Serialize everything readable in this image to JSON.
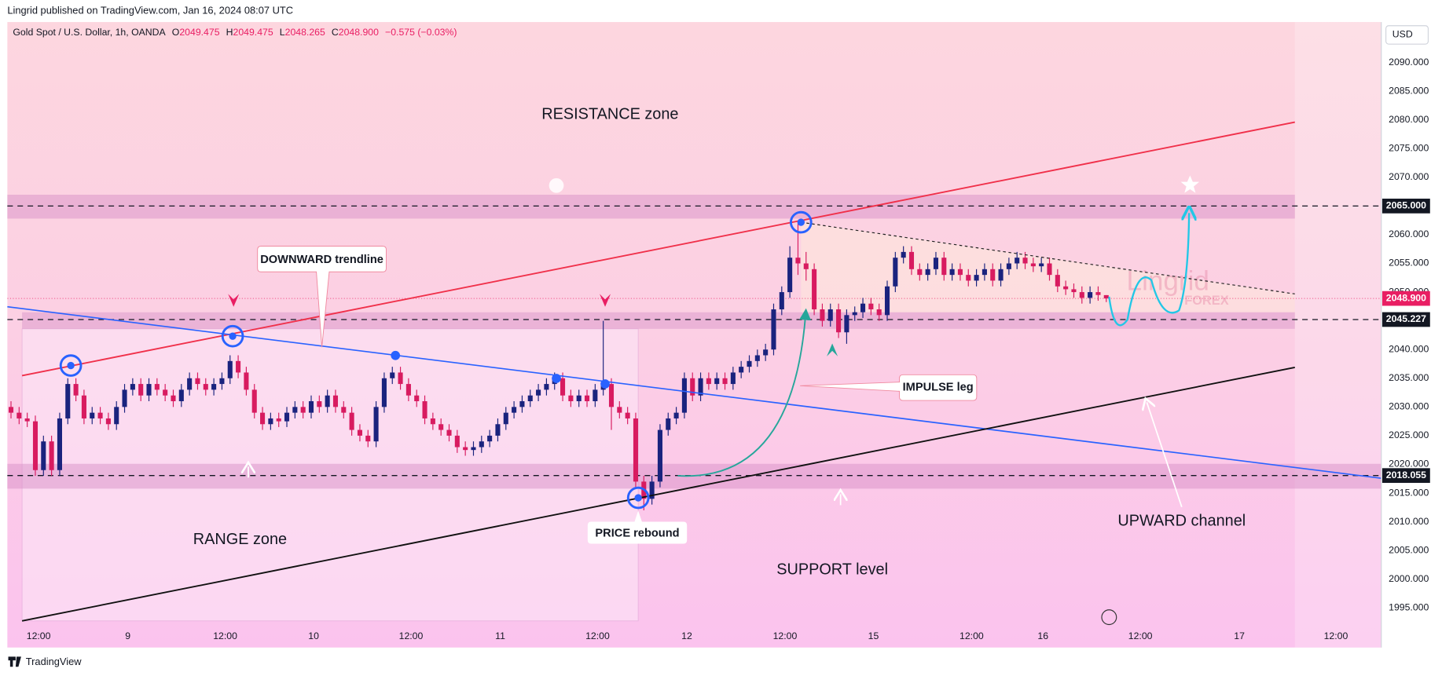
{
  "published": "Lingrid published on TradingView.com, Jan 16, 2024 08:07 UTC",
  "brand": "TradingView",
  "currency": "USD",
  "watermark": [
    "Lingrid",
    "FOREX"
  ],
  "chart_data": {
    "type": "candlestick",
    "title": "Gold Spot / U.S. Dollar, 1h, OANDA",
    "ohlc": [
      {
        "label": "O",
        "value": "2049.475"
      },
      {
        "label": "H",
        "value": "2049.475"
      },
      {
        "label": "L",
        "value": "2048.265"
      },
      {
        "label": "C",
        "value": "2048.900"
      }
    ],
    "change": "−0.575 (−0.03%)",
    "annotations": [
      "RESISTANCE zone",
      "DOWNWARD trendline",
      "IMPULSE leg",
      "PRICE rebound",
      "RANGE zone",
      "SUPPORT level",
      "UPWARD channel"
    ],
    "up_color": "#1a237e",
    "down_color": "#d81b60",
    "open": [
      2030,
      2029,
      2028,
      2027.5,
      2019,
      2024,
      2019,
      2028,
      2034,
      2032,
      2028,
      2029,
      2028,
      2027,
      2030,
      2033,
      2034,
      2032,
      2034,
      2033,
      2032,
      2031,
      2033,
      2035,
      2034,
      2033,
      2034,
      2035,
      2038,
      2036,
      2033,
      2029,
      2027,
      2028,
      2027.5,
      2029,
      2030,
      2029,
      2031,
      2030,
      2032,
      2030,
      2029,
      2026,
      2025,
      2024,
      2030,
      2035,
      2036,
      2034,
      2032,
      2031,
      2028,
      2027,
      2026,
      2025,
      2023,
      2022.5,
      2023,
      2024,
      2025,
      2027,
      2029,
      2030,
      2031,
      2032,
      2033,
      2034,
      2035,
      2032,
      2031,
      2032,
      2031,
      2033,
      2034,
      2030,
      2029,
      2028,
      2017,
      2014,
      2017,
      2026,
      2028,
      2029,
      2035,
      2032,
      2035,
      2034,
      2035,
      2034,
      2036,
      2037,
      2038,
      2039,
      2040,
      2047,
      2050,
      2056,
      2055,
      2054,
      2047,
      2045,
      2047,
      2043,
      2046,
      2046.5,
      2048,
      2047,
      2046,
      2051,
      2056,
      2057,
      2054,
      2053,
      2054,
      2056,
      2053,
      2054,
      2053,
      2052,
      2053,
      2054,
      2052,
      2054,
      2055,
      2056,
      2055,
      2054.5,
      2055,
      2053,
      2051,
      2050.5,
      2050,
      2049,
      2050,
      2049.475
    ],
    "high": [
      2031,
      2030,
      2029,
      2028.5,
      2025,
      2025,
      2029,
      2035,
      2035,
      2033,
      2030,
      2030,
      2029,
      2031,
      2034,
      2035,
      2035,
      2035,
      2035,
      2034,
      2033,
      2034,
      2036,
      2036,
      2035,
      2035,
      2036,
      2039,
      2039,
      2037,
      2034,
      2030,
      2029,
      2029,
      2030,
      2031,
      2031,
      2032,
      2032,
      2033,
      2033,
      2031,
      2030,
      2027,
      2026,
      2031,
      2036,
      2037,
      2037,
      2035,
      2033,
      2032,
      2029,
      2028,
      2027,
      2026,
      2024,
      2024,
      2025,
      2026,
      2028,
      2030,
      2031,
      2032,
      2033,
      2034,
      2035,
      2036,
      2036,
      2033,
      2033,
      2033,
      2034,
      2045,
      2035,
      2031,
      2030,
      2029,
      2018,
      2018,
      2027,
      2029,
      2030,
      2036,
      2036,
      2036,
      2036,
      2036,
      2036,
      2037,
      2038,
      2039,
      2040,
      2041,
      2048,
      2051,
      2058,
      2062,
      2057,
      2055,
      2048,
      2048,
      2048,
      2047,
      2047.5,
      2049,
      2049,
      2048,
      2052,
      2057,
      2058,
      2058,
      2055,
      2055,
      2057,
      2057,
      2055,
      2055,
      2054,
      2054,
      2055,
      2055,
      2055,
      2056,
      2057,
      2057,
      2056,
      2056,
      2056,
      2054,
      2052,
      2051.5,
      2051,
      2051,
      2051,
      2049.475
    ],
    "low": [
      2028,
      2027,
      2026.5,
      2018,
      2018,
      2018,
      2018,
      2027,
      2031,
      2027,
      2027,
      2027,
      2026,
      2026,
      2029,
      2032,
      2031,
      2031,
      2032,
      2031,
      2030,
      2030,
      2032,
      2033,
      2032,
      2032,
      2033,
      2034,
      2035,
      2032,
      2028,
      2026,
      2026,
      2026.5,
      2026.5,
      2028,
      2028,
      2028,
      2029,
      2029,
      2029,
      2028,
      2025,
      2024,
      2023,
      2023,
      2029,
      2034,
      2033,
      2031,
      2030,
      2027,
      2026,
      2025,
      2024,
      2022,
      2021.5,
      2021.5,
      2022,
      2023,
      2024,
      2026,
      2028,
      2029,
      2030,
      2031,
      2032,
      2033,
      2031,
      2030,
      2030,
      2030,
      2030,
      2032,
      2026,
      2028,
      2027,
      2016,
      2012,
      2013,
      2016,
      2025,
      2027,
      2028,
      2031,
      2031,
      2033,
      2033,
      2033,
      2033,
      2035,
      2036,
      2037,
      2038,
      2039,
      2046,
      2049,
      2053,
      2052,
      2046,
      2044,
      2044,
      2042,
      2041,
      2045,
      2045.5,
      2046,
      2045,
      2045,
      2050,
      2055,
      2053,
      2052,
      2052,
      2053,
      2052,
      2052,
      2052,
      2051,
      2051,
      2052,
      2051,
      2051,
      2053,
      2054,
      2054,
      2053.5,
      2053.5,
      2052,
      2050,
      2049.5,
      2049,
      2048,
      2048,
      2048.5,
      2048.265
    ],
    "close": [
      2029,
      2028,
      2027.5,
      2019,
      2024,
      2019,
      2028,
      2034,
      2032,
      2028,
      2029,
      2028,
      2027,
      2030,
      2033,
      2034,
      2032,
      2034,
      2033,
      2032,
      2031,
      2033,
      2035,
      2034,
      2033,
      2034,
      2035,
      2038,
      2036,
      2033,
      2029,
      2027,
      2028,
      2027.5,
      2029,
      2030,
      2029,
      2031,
      2030,
      2032,
      2030,
      2029,
      2026,
      2025,
      2024,
      2030,
      2035,
      2036,
      2034,
      2032,
      2031,
      2028,
      2027,
      2026,
      2025,
      2023,
      2022.5,
      2023,
      2024,
      2025,
      2027,
      2029,
      2030,
      2031,
      2032,
      2033,
      2034,
      2035,
      2032,
      2031,
      2032,
      2031,
      2033,
      2034,
      2030,
      2029,
      2028,
      2017,
      2014,
      2017,
      2026,
      2028,
      2029,
      2035,
      2032,
      2035,
      2034,
      2035,
      2034,
      2036,
      2037,
      2038,
      2039,
      2040,
      2047,
      2050,
      2056,
      2055,
      2054,
      2047,
      2045,
      2047,
      2043,
      2046,
      2046.5,
      2048,
      2047,
      2046,
      2051,
      2056,
      2057,
      2054,
      2053,
      2054,
      2056,
      2053,
      2054,
      2053,
      2052,
      2053,
      2054,
      2052,
      2054,
      2055,
      2056,
      2055,
      2054.5,
      2055,
      2053,
      2051,
      2050.5,
      2050,
      2049,
      2050,
      2049.5,
      2048.9
    ],
    "xlim": [
      -0.45,
      168.9
    ],
    "xticks": [
      {
        "value": 3.4,
        "label": "12:00"
      },
      {
        "value": 14.4,
        "label": "9"
      },
      {
        "value": 26.4,
        "label": "12:00"
      },
      {
        "value": 37.3,
        "label": "10"
      },
      {
        "value": 49.3,
        "label": "12:00"
      },
      {
        "value": 60.3,
        "label": "11"
      },
      {
        "value": 72.3,
        "label": "12:00"
      },
      {
        "value": 83.3,
        "label": "12"
      },
      {
        "value": 95.4,
        "label": "12:00"
      },
      {
        "value": 106.3,
        "label": "15"
      },
      {
        "value": 118.4,
        "label": "12:00"
      },
      {
        "value": 127.2,
        "label": "16"
      },
      {
        "value": 139.2,
        "label": "12:00"
      },
      {
        "value": 151.4,
        "label": "17"
      },
      {
        "value": 163.3,
        "label": "12:00"
      }
    ],
    "ylim": [
      1988.1,
      2096.4
    ],
    "yticks": [
      {
        "value": 1995,
        "label": "1995.000"
      },
      {
        "value": 2000,
        "label": "2000.000"
      },
      {
        "value": 2005,
        "label": "2005.000"
      },
      {
        "value": 2010,
        "label": "2010.000"
      },
      {
        "value": 2015,
        "label": "2015.000"
      },
      {
        "value": 2020,
        "label": "2020.000"
      },
      {
        "value": 2025,
        "label": "2025.000"
      },
      {
        "value": 2030,
        "label": "2030.000"
      },
      {
        "value": 2035,
        "label": "2035.000"
      },
      {
        "value": 2040,
        "label": "2040.000"
      },
      {
        "value": 2050,
        "label": "2050.000"
      },
      {
        "value": 2055,
        "label": "2055.000"
      },
      {
        "value": 2060,
        "label": "2060.000"
      },
      {
        "value": 2070,
        "label": "2070.000"
      },
      {
        "value": 2075,
        "label": "2075.000"
      },
      {
        "value": 2080,
        "label": "2080.000"
      },
      {
        "value": 2085,
        "label": "2085.000"
      },
      {
        "value": 2090,
        "label": "2090.000"
      }
    ],
    "levels": [
      {
        "value": 2065,
        "label": "2065.000",
        "color": "#131722",
        "style": "dashed"
      },
      {
        "value": 2048.9,
        "label": "2048.900",
        "color": "#e91e63",
        "style": "dotted"
      },
      {
        "value": 2045.227,
        "label": "2045.227",
        "color": "#131722",
        "style": "dashed"
      },
      {
        "value": 2018.055,
        "label": "2018.055",
        "color": "#131722",
        "style": "dashed"
      }
    ],
    "grid": false
  }
}
